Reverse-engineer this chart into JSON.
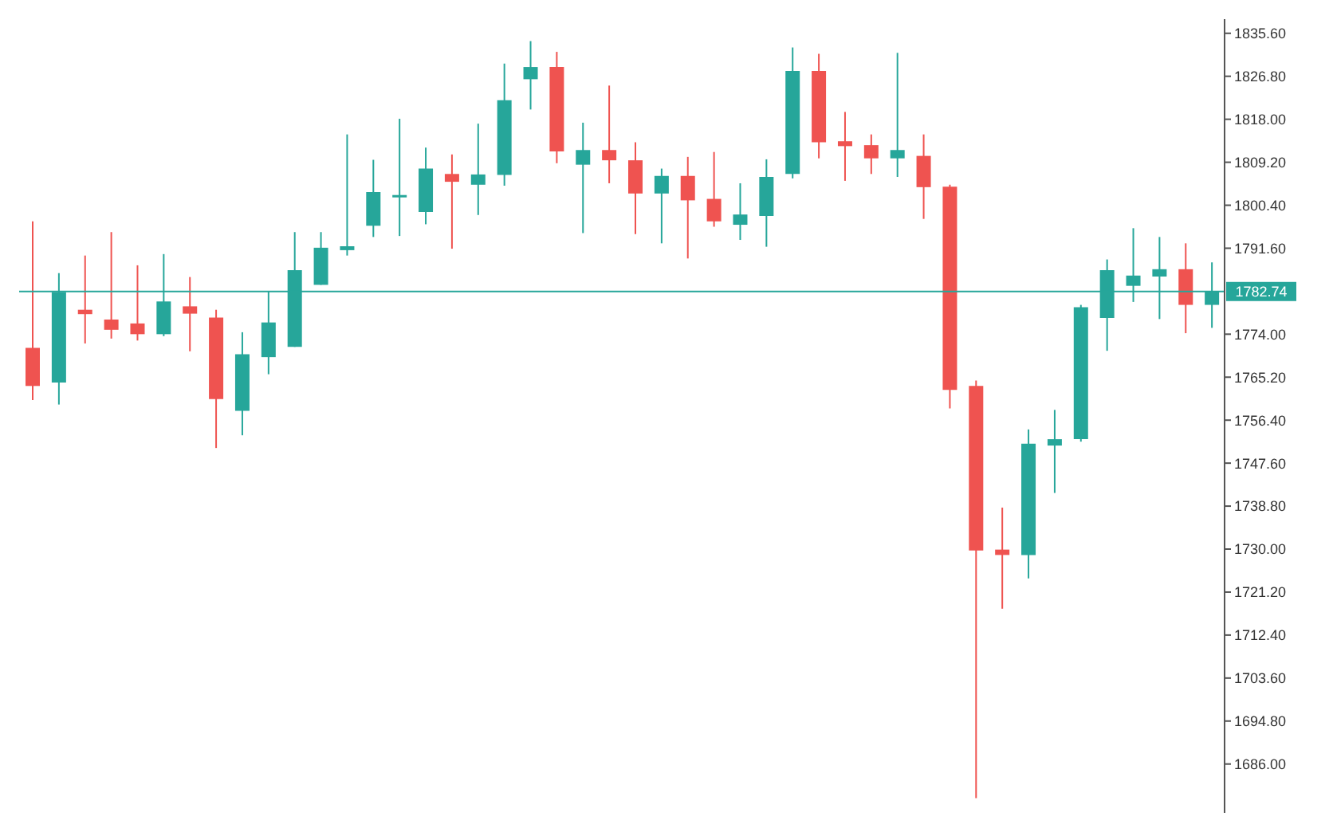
{
  "chart_data": {
    "type": "candlestick",
    "categories": [
      null,
      null,
      null,
      null,
      null,
      null,
      null,
      null,
      null,
      null,
      null,
      null,
      null,
      null,
      null,
      null,
      null,
      null,
      null,
      null,
      null,
      null,
      null,
      null,
      null,
      null,
      null,
      null,
      null,
      null,
      null,
      null,
      null,
      null,
      null,
      null,
      null,
      null,
      null,
      null,
      null,
      null,
      null,
      null,
      null,
      null
    ],
    "ohlc": [
      [
        1771.2,
        1797.1,
        1760.5,
        1763.4
      ],
      [
        1764.1,
        1786.5,
        1759.6,
        1782.6
      ],
      [
        1779.0,
        1790.1,
        1772.1,
        1778.1
      ],
      [
        1777.0,
        1794.9,
        1773.1,
        1774.9
      ],
      [
        1776.2,
        1788.1,
        1772.7,
        1774.0
      ],
      [
        1774.0,
        1790.4,
        1773.6,
        1780.7
      ],
      [
        1779.7,
        1785.7,
        1770.5,
        1778.2
      ],
      [
        1777.4,
        1779.0,
        1750.7,
        1760.7
      ],
      [
        1758.3,
        1774.4,
        1753.3,
        1769.9
      ],
      [
        1769.3,
        1782.8,
        1765.8,
        1776.4
      ],
      [
        1771.4,
        1794.9,
        1771.4,
        1787.1
      ],
      [
        1784.1,
        1794.9,
        1784.1,
        1791.7
      ],
      [
        1791.2,
        1814.9,
        1790.1,
        1792.0
      ],
      [
        1796.2,
        1809.7,
        1793.9,
        1803.1
      ],
      [
        1802.0,
        1818.1,
        1794.1,
        1802.3
      ],
      [
        1799.0,
        1812.2,
        1796.5,
        1807.9
      ],
      [
        1806.8,
        1810.8,
        1791.5,
        1805.2
      ],
      [
        1804.6,
        1817.1,
        1798.4,
        1806.7
      ],
      [
        1806.6,
        1829.4,
        1804.4,
        1821.9
      ],
      [
        1826.2,
        1834.0,
        1820.0,
        1828.7
      ],
      [
        1828.7,
        1831.8,
        1809.0,
        1811.4
      ],
      [
        1808.7,
        1817.3,
        1794.7,
        1811.7
      ],
      [
        1811.7,
        1824.9,
        1804.9,
        1809.6
      ],
      [
        1809.6,
        1813.3,
        1794.5,
        1802.8
      ],
      [
        1802.8,
        1807.9,
        1792.6,
        1806.4
      ],
      [
        1806.4,
        1810.3,
        1789.5,
        1801.4
      ],
      [
        1801.7,
        1811.3,
        1796.0,
        1797.1
      ],
      [
        1796.4,
        1804.9,
        1793.3,
        1798.5
      ],
      [
        1798.2,
        1809.8,
        1791.9,
        1806.2
      ],
      [
        1806.8,
        1832.7,
        1805.9,
        1827.9
      ],
      [
        1827.9,
        1831.4,
        1810.0,
        1813.3
      ],
      [
        1813.5,
        1819.5,
        1805.4,
        1812.5
      ],
      [
        1812.7,
        1814.9,
        1806.8,
        1810.0
      ],
      [
        1810.0,
        1831.6,
        1806.2,
        1811.7
      ],
      [
        1810.5,
        1814.9,
        1797.6,
        1804.1
      ],
      [
        1804.2,
        1804.6,
        1758.8,
        1762.6
      ],
      [
        1763.4,
        1764.5,
        1679.0,
        1729.7
      ],
      [
        1729.9,
        1738.5,
        1717.8,
        1728.8
      ],
      [
        1728.8,
        1754.5,
        1724.0,
        1751.6
      ],
      [
        1751.2,
        1758.5,
        1741.5,
        1752.5
      ],
      [
        1752.5,
        1780.0,
        1752.0,
        1779.5
      ],
      [
        1777.3,
        1789.3,
        1770.6,
        1787.1
      ],
      [
        1783.9,
        1795.7,
        1780.6,
        1786.0
      ],
      [
        1785.8,
        1793.9,
        1777.1,
        1787.3
      ],
      [
        1787.3,
        1792.6,
        1774.2,
        1780.0
      ],
      [
        1780.0,
        1788.7,
        1775.3,
        1782.7
      ]
    ],
    "colors": [
      "#ef5350",
      "#26a69a",
      "#ef5350",
      "#ef5350",
      "#ef5350",
      "#26a69a",
      "#ef5350",
      "#ef5350",
      "#26a69a",
      "#26a69a",
      "#26a69a",
      "#26a69a",
      "#26a69a",
      "#26a69a",
      "#26a69a",
      "#26a69a",
      "#ef5350",
      "#26a69a",
      "#26a69a",
      "#26a69a",
      "#ef5350",
      "#26a69a",
      "#ef5350",
      "#ef5350",
      "#26a69a",
      "#ef5350",
      "#ef5350",
      "#26a69a",
      "#26a69a",
      "#26a69a",
      "#ef5350",
      "#ef5350",
      "#ef5350",
      "#26a69a",
      "#ef5350",
      "#ef5350",
      "#ef5350",
      "#ef5350",
      "#26a69a",
      "#26a69a",
      "#26a69a",
      "#26a69a",
      "#26a69a",
      "#26a69a",
      "#ef5350",
      "#26a69a"
    ],
    "ylim": [
      1676,
      1838.5
    ],
    "yticks": [
      {
        "value": 1835.6,
        "label": "1835.60"
      },
      {
        "value": 1826.8,
        "label": "1826.80"
      },
      {
        "value": 1818,
        "label": "1818.00"
      },
      {
        "value": 1809.2,
        "label": "1809.20"
      },
      {
        "value": 1800.4,
        "label": "1800.40"
      },
      {
        "value": 1791.6,
        "label": "1791.60"
      },
      {
        "value": 1774,
        "label": "1774.00"
      },
      {
        "value": 1765.2,
        "label": "1765.20"
      },
      {
        "value": 1756.4,
        "label": "1756.40"
      },
      {
        "value": 1747.6,
        "label": "1747.60"
      },
      {
        "value": 1738.8,
        "label": "1738.80"
      },
      {
        "value": 1730,
        "label": "1730.00"
      },
      {
        "value": 1721.2,
        "label": "1721.20"
      },
      {
        "value": 1712.4,
        "label": "1712.40"
      },
      {
        "value": 1703.6,
        "label": "1703.60"
      },
      {
        "value": 1694.8,
        "label": "1694.80"
      },
      {
        "value": 1686,
        "label": "1686.00"
      }
    ],
    "ref_lines": [
      {
        "axis": "y",
        "value": 1782.74,
        "label": "1782.74",
        "color": "#26a69a"
      }
    ],
    "tick_labels": "y",
    "grid": false
  }
}
